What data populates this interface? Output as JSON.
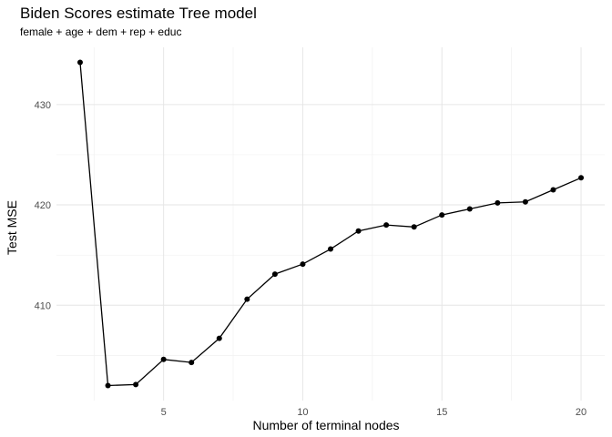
{
  "chart_data": {
    "type": "line",
    "title": "Biden Scores estimate Tree model",
    "subtitle": "female + age + dem + rep + educ",
    "xlabel": "Number of terminal nodes",
    "ylabel": "Test MSE",
    "x": [
      2,
      3,
      4,
      5,
      6,
      7,
      8,
      9,
      10,
      11,
      12,
      13,
      14,
      15,
      16,
      17,
      18,
      19,
      20
    ],
    "y": [
      434.2,
      402.0,
      402.1,
      404.6,
      404.3,
      406.7,
      410.6,
      413.1,
      414.1,
      415.6,
      417.4,
      418.0,
      417.8,
      419.0,
      419.6,
      420.2,
      420.3,
      421.5,
      422.7
    ],
    "xlim": [
      1.15,
      20.85
    ],
    "ylim": [
      400.5,
      435.7
    ],
    "x_ticks": [
      5,
      10,
      15,
      20
    ],
    "y_ticks": [
      410,
      420,
      430
    ],
    "grid": true,
    "line_color": "#000000",
    "point_color": "#000000"
  }
}
